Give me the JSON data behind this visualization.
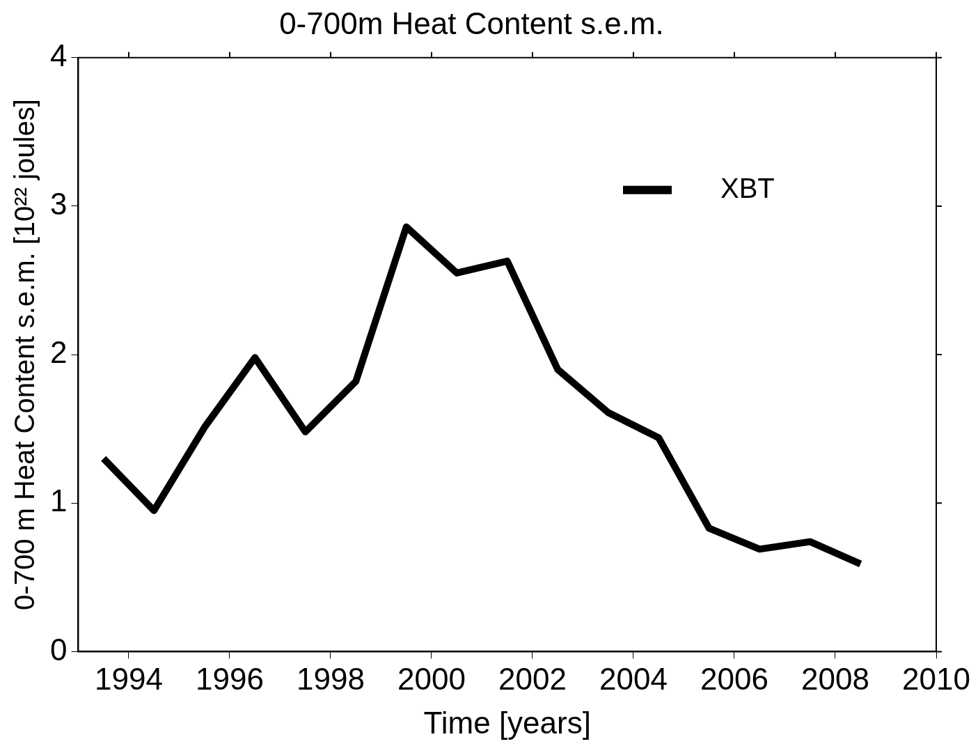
{
  "chart_data": {
    "type": "line",
    "title": "0-700m Heat Content s.e.m.",
    "xlabel": "Time [years]",
    "ylabel": "0-700 m Heat Content s.e.m. [10²² joules]",
    "x": [
      1993.5,
      1994.5,
      1995.5,
      1996.5,
      1997.5,
      1998.5,
      1999.5,
      2000.5,
      2001.5,
      2002.5,
      2003.5,
      2004.5,
      2005.5,
      2006.5,
      2007.5,
      2008.5
    ],
    "series": [
      {
        "name": "XBT",
        "color": "#000000",
        "values": [
          1.3,
          0.95,
          1.51,
          1.98,
          1.48,
          1.82,
          2.86,
          2.55,
          2.63,
          1.9,
          1.61,
          1.44,
          0.83,
          0.69,
          0.74,
          0.59
        ]
      }
    ],
    "xlim": [
      1993,
      2010
    ],
    "xticks": [
      1994,
      1996,
      1998,
      2000,
      2002,
      2004,
      2006,
      2008,
      2010
    ],
    "ylim": [
      0,
      4
    ],
    "yticks": [
      0,
      1,
      2,
      3,
      4
    ],
    "grid": false,
    "legend": "top right",
    "marker": "none",
    "line_style": "solid"
  }
}
